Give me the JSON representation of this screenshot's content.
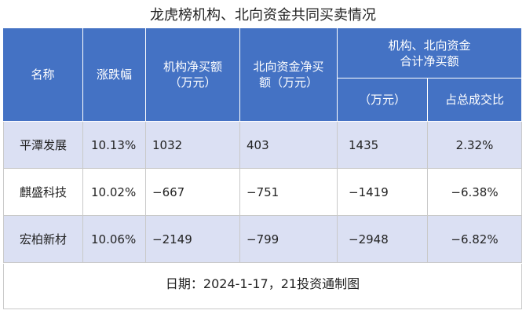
{
  "title": "龙虎榜机构、北向资金共同买卖情况",
  "header": {
    "columns": [
      [
        "名称"
      ],
      [
        "涨跌幅"
      ],
      [
        "机构净买额",
        "（万元）"
      ],
      [
        "北向资金净买",
        "额（万元）"
      ]
    ],
    "group": [
      "机构、北向资金",
      "合计净买额"
    ],
    "subcolumns": [
      [
        "（万元）"
      ],
      [
        "占总成交比"
      ]
    ]
  },
  "table": {
    "rows": [
      [
        "平潭发展",
        "10.13%",
        "1032",
        "403",
        "1435",
        "2.32%"
      ],
      [
        "麒盛科技",
        "10.02%",
        "−667",
        "−751",
        "−1419",
        "−6.38%"
      ],
      [
        "宏柏新材",
        "10.06%",
        "−2149",
        "−799",
        "−2948",
        "−6.82%"
      ]
    ]
  },
  "footer": "日期：2024-1-17，21投资通制图"
}
